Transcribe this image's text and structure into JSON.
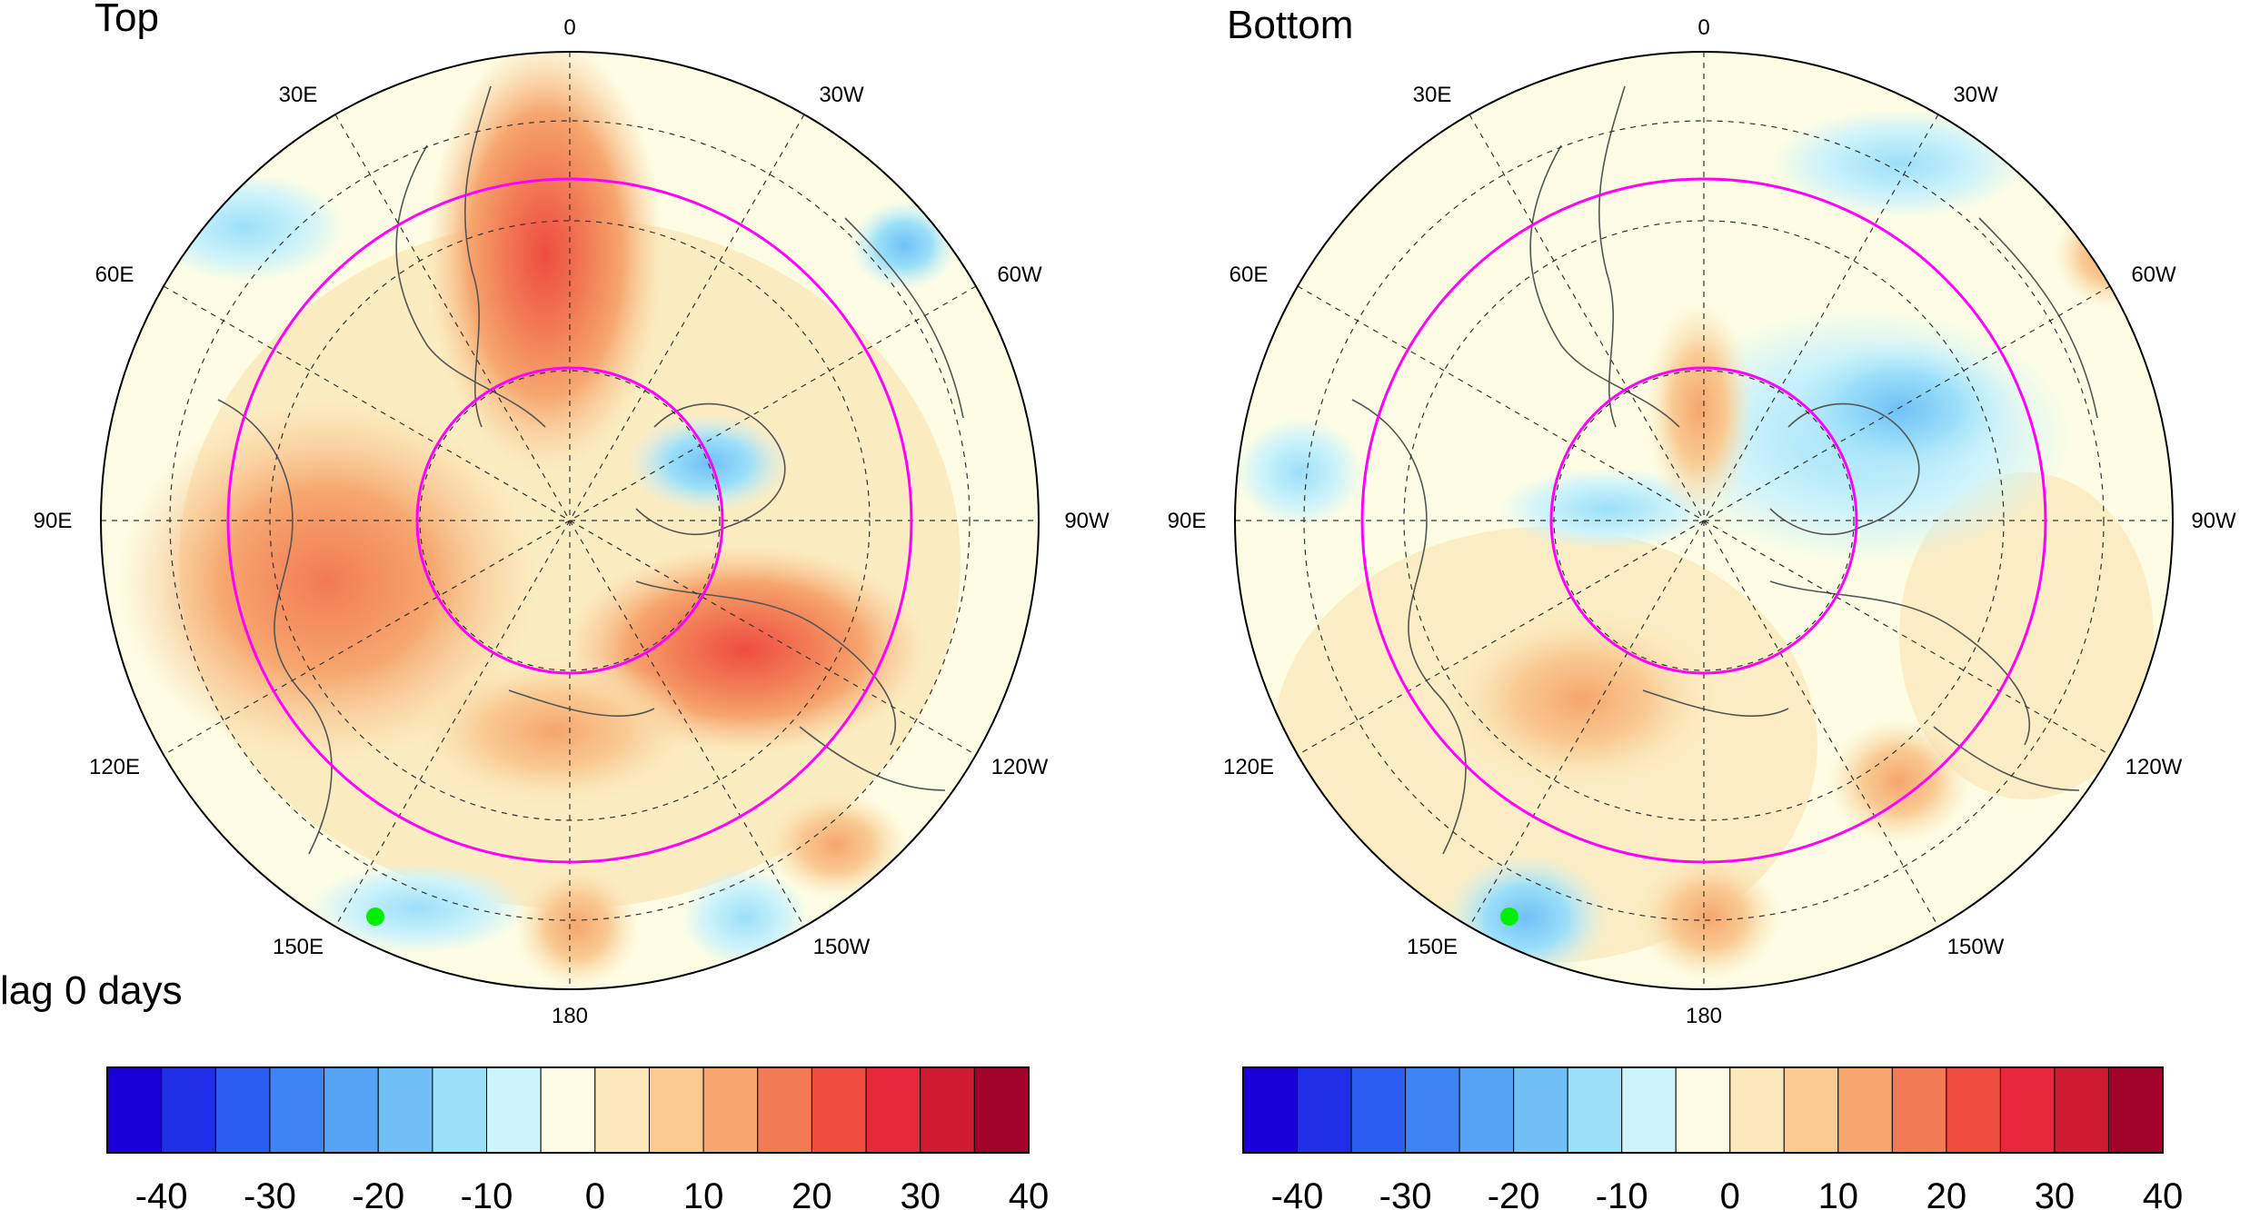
{
  "figure": {
    "lag_label": "lag 0 days",
    "marker_color": "#00ee00",
    "circle_color": "#ff00ff"
  },
  "panels": [
    {
      "id": "top",
      "title": "Top",
      "longitude_labels": [
        "0",
        "30W",
        "60W",
        "90W",
        "120W",
        "150W",
        "180",
        "150E",
        "120E",
        "90E",
        "60E",
        "30E"
      ]
    },
    {
      "id": "bottom",
      "title": "Bottom",
      "longitude_labels": [
        "0",
        "30W",
        "60W",
        "90W",
        "120W",
        "150W",
        "180",
        "150E",
        "120E",
        "90E",
        "60E",
        "30E"
      ]
    }
  ],
  "colorbar": {
    "levels": [
      -40,
      -35,
      -30,
      -25,
      -20,
      -15,
      -10,
      -5,
      0,
      5,
      10,
      15,
      20,
      25,
      30,
      35,
      40
    ],
    "tick_labels": [
      "-40",
      "-30",
      "-20",
      "-10",
      "0",
      "10",
      "20",
      "30",
      "40"
    ],
    "colors": [
      "#1a00d4",
      "#1f2fe8",
      "#2a5ef0",
      "#3e83f3",
      "#56a3f5",
      "#70c0f7",
      "#9bdff9",
      "#cdf3fb",
      "#fdfde4",
      "#fbe9bc",
      "#f9cb93",
      "#f6a66e",
      "#f27a55",
      "#ef4c40",
      "#e8283a",
      "#cf1b32",
      "#a0022a"
    ]
  }
}
